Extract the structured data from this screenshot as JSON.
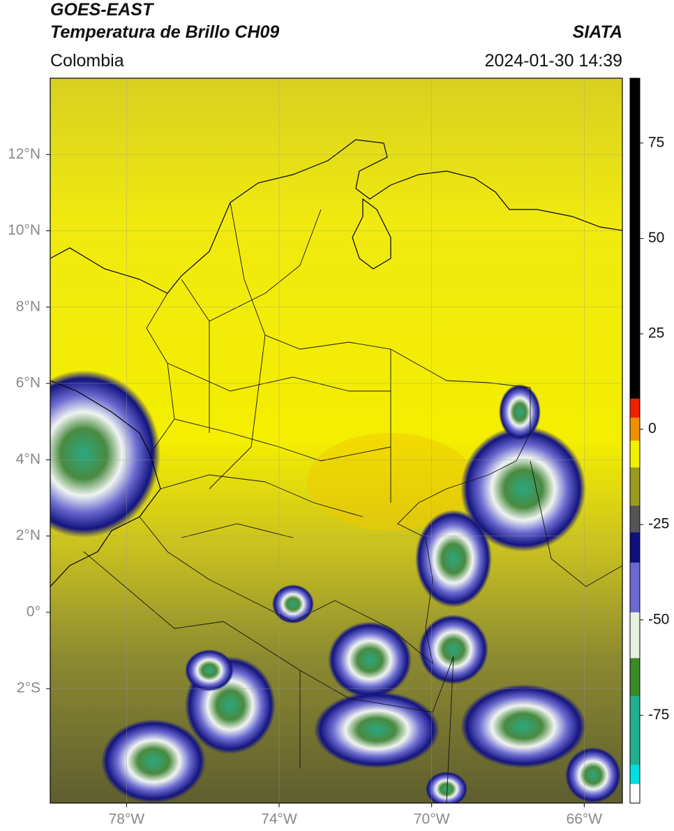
{
  "header": {
    "title_line1": "GOES-EAST",
    "title_line2": "Temperatura de Brillo CH09",
    "region": "Colombia",
    "source": "SIATA",
    "datetime": "2024-01-30 14:39"
  },
  "map": {
    "lon_extent": [
      -80,
      -65
    ],
    "lat_extent": [
      -5,
      14
    ],
    "lon_ticks": [
      {
        "value": -78,
        "label": "78°W"
      },
      {
        "value": -74,
        "label": "74°W"
      },
      {
        "value": -70,
        "label": "70°W"
      },
      {
        "value": -66,
        "label": "66°W"
      }
    ],
    "lat_ticks": [
      {
        "value": 12,
        "label": "12°N"
      },
      {
        "value": 10,
        "label": "10°N"
      },
      {
        "value": 8,
        "label": "8°N"
      },
      {
        "value": 6,
        "label": "6°N"
      },
      {
        "value": 4,
        "label": "4°N"
      },
      {
        "value": 2,
        "label": "2°N"
      },
      {
        "value": 0,
        "label": "0°"
      },
      {
        "value": -2,
        "label": "2°S"
      }
    ],
    "colorbar": {
      "lim": [
        -98,
        92
      ],
      "ticks": [
        75,
        50,
        25,
        0,
        -25,
        -50,
        -75
      ],
      "levels": [
        -98,
        -93,
        -88,
        -70,
        -60,
        -48,
        -35,
        -27,
        -20,
        -10,
        -3,
        3,
        8,
        92
      ],
      "colors": [
        "#ffffff",
        "#00e0e0",
        "#20b090",
        "#3a8a2a",
        "#e8f0e0",
        "#6a6ad0",
        "#10107a",
        "#555555",
        "#9a9a20",
        "#f0f000",
        "#f09000",
        "#f02000",
        "#000000"
      ]
    }
  }
}
